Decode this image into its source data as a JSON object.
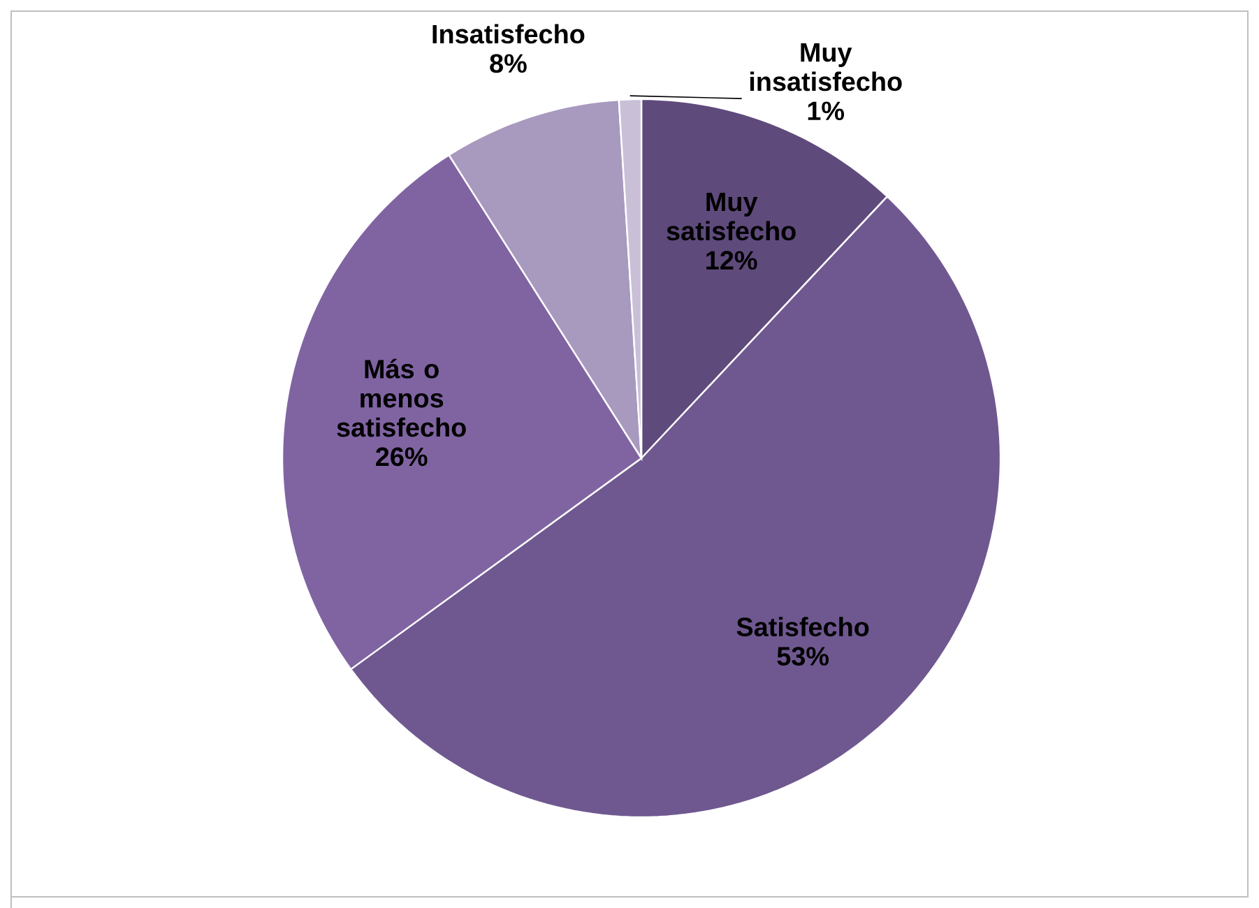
{
  "chart_data": {
    "type": "pie",
    "categories": [
      "Muy satisfecho",
      "Satisfecho",
      "Más o menos satisfecho",
      "Insatisfecho",
      "Muy insatisfecho"
    ],
    "values": [
      12,
      53,
      26,
      8,
      1
    ],
    "value_labels": [
      "12%",
      "53%",
      "26%",
      "8%",
      "1%"
    ],
    "colors": [
      "#5f4a7c",
      "#6f5890",
      "#8064a2",
      "#a899bf",
      "#c9c0d8"
    ]
  }
}
